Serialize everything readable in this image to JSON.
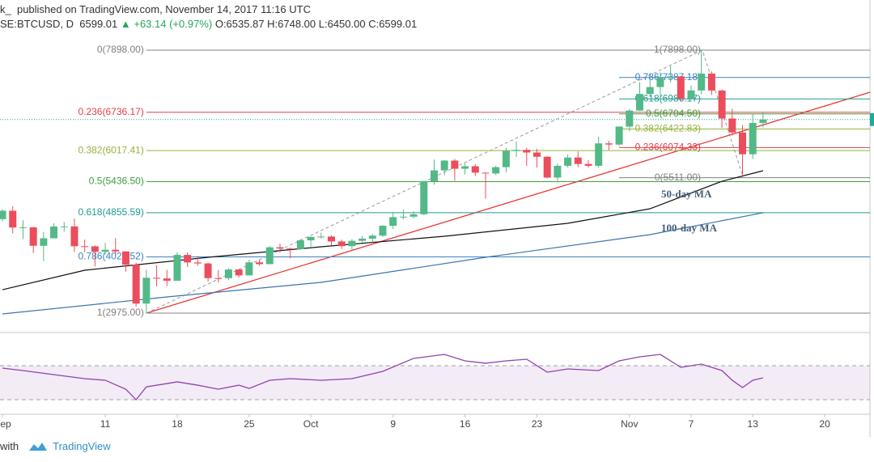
{
  "header": {
    "publisher": "k_",
    "published": "published on TradingView.com, November 14, 2017 11:16 UTC",
    "symbol": "SE:BTCUSD, D",
    "price": "6599.01",
    "change": "▲ +63.14 (+0.97%)",
    "ohlc": "O:6535.87 H:6748.00 L:6450.00 C:6599.01"
  },
  "footer": {
    "with": "with",
    "brand": "TradingView"
  },
  "chart_data": {
    "type": "candlestick",
    "up_color": "#53b987",
    "down_color": "#eb4d5c",
    "x": [
      0,
      1,
      2,
      3,
      4,
      5,
      6,
      7,
      8,
      9,
      10,
      11,
      12,
      13,
      14,
      15,
      16,
      17,
      18,
      19,
      20,
      21,
      22,
      23,
      24,
      25,
      26,
      27,
      28,
      29,
      30,
      31,
      32,
      33,
      34,
      35,
      36,
      37,
      38,
      39,
      40,
      41,
      42,
      43,
      44,
      45,
      46,
      47,
      48,
      49,
      50,
      51,
      52,
      53,
      54,
      55,
      56,
      57,
      58,
      59,
      60,
      61,
      62,
      63,
      64,
      65,
      66,
      67,
      68,
      69,
      70,
      71,
      72,
      73,
      74
    ],
    "open": [
      4735,
      4892,
      4578,
      4582,
      4236,
      4376,
      4597,
      4599,
      4228,
      4226,
      4122,
      4161,
      4130,
      3882,
      3154,
      3637,
      3625,
      3582,
      4065,
      3924,
      3905,
      3631,
      3630,
      3792,
      3682,
      3926,
      3892,
      4208,
      4185,
      4174,
      4338,
      4403,
      4409,
      4317,
      4229,
      4328,
      4370,
      4426,
      4611,
      4772,
      4781,
      4826,
      5446,
      5647,
      5831,
      5678,
      5725,
      5605,
      5590,
      5708,
      6011,
      6031,
      5982,
      5903,
      5513,
      5733,
      5888,
      5767,
      5733,
      6153,
      6131,
      6468,
      6767,
      7078,
      7207,
      7379,
      7407,
      6991,
      7144,
      7459,
      7143,
      6618,
      6357,
      5950,
      6535.87
    ],
    "high": [
      4920,
      4980,
      4714,
      4588,
      4489,
      4657,
      4681,
      4745,
      4352,
      4246,
      4294,
      4380,
      4130,
      3920,
      3790,
      3875,
      3786,
      4111,
      4111,
      4045,
      3922,
      3782,
      3816,
      3792,
      3975,
      3985,
      4230,
      4275,
      4200,
      4360,
      4405,
      4480,
      4430,
      4350,
      4360,
      4420,
      4460,
      4620,
      4870,
      4920,
      4880,
      5450,
      5850,
      5840,
      5860,
      5780,
      5760,
      5610,
      5730,
      6070,
      6190,
      6070,
      6050,
      5910,
      5780,
      5950,
      6000,
      5840,
      6280,
      6200,
      6470,
      6800,
      7300,
      7450,
      7480,
      7600,
      7420,
      7240,
      7898,
      7500,
      7160,
      6800,
      6500,
      6710,
      6748
    ],
    "low": [
      4690,
      4470,
      4360,
      4102,
      3950,
      4376,
      4500,
      4120,
      4120,
      3852,
      4070,
      4066,
      3752,
      3100,
      2975,
      3474,
      3480,
      3582,
      3841,
      3862,
      3564,
      3550,
      3590,
      3640,
      3682,
      3860,
      3892,
      4110,
      4000,
      4160,
      4220,
      4370,
      4240,
      4180,
      4160,
      4300,
      4300,
      4400,
      4550,
      4730,
      4750,
      4810,
      5380,
      5560,
      5450,
      5570,
      5540,
      5120,
      5560,
      5610,
      5900,
      5730,
      5700,
      5500,
      5420,
      5700,
      5710,
      5700,
      5700,
      6030,
      6110,
      6380,
      6760,
      7020,
      6960,
      7290,
      6940,
      6980,
      7071,
      7060,
      6440,
      6300,
      5511,
      5860,
      6450
    ],
    "close": [
      4892,
      4578,
      4582,
      4236,
      4376,
      4597,
      4599,
      4228,
      4226,
      4122,
      4161,
      4130,
      3882,
      3154,
      3637,
      3625,
      3582,
      4065,
      3924,
      3905,
      3631,
      3630,
      3792,
      3682,
      3926,
      3892,
      4208,
      4185,
      4174,
      4338,
      4403,
      4409,
      4317,
      4229,
      4328,
      4370,
      4426,
      4611,
      4772,
      4781,
      4826,
      5446,
      5647,
      5831,
      5678,
      5725,
      5605,
      5590,
      5708,
      6011,
      6031,
      5982,
      5903,
      5513,
      5733,
      5888,
      5767,
      5733,
      6153,
      6131,
      6468,
      6767,
      7078,
      7207,
      7379,
      7407,
      6991,
      7144,
      7459,
      7143,
      6618,
      6357,
      5950,
      6536,
      6599.01
    ],
    "xlim": [
      -0.24,
      84.4
    ],
    "xticks": [
      {
        "value": 0,
        "label": "Sep"
      },
      {
        "value": 10,
        "label": "11"
      },
      {
        "value": 17,
        "label": "18"
      },
      {
        "value": 24,
        "label": "25"
      },
      {
        "value": 30,
        "label": "Oct"
      },
      {
        "value": 38,
        "label": "9"
      },
      {
        "value": 45,
        "label": "16"
      },
      {
        "value": 52,
        "label": "23"
      },
      {
        "value": 61,
        "label": "Nov"
      },
      {
        "value": 67,
        "label": "7"
      },
      {
        "value": 73,
        "label": "13"
      },
      {
        "value": 80,
        "label": "20"
      }
    ],
    "ylim": [
      2627,
      8837
    ],
    "ma": [
      {
        "name": "50-day MA",
        "color": "#111111",
        "x": [
          0,
          8,
          20,
          31,
          43,
          55,
          63,
          70,
          74
        ],
        "values": [
          3414,
          3778,
          4020,
          4217,
          4414,
          4657,
          4929,
          5444,
          5641
        ]
      },
      {
        "name": "100-day MA",
        "color": "#3d72b0",
        "x": [
          0,
          16,
          31,
          47,
          63,
          74
        ],
        "values": [
          2960,
          3278,
          3551,
          4020,
          4445,
          4854
        ]
      }
    ],
    "fib_left": [
      {
        "label": "0(7898.00)",
        "value": 7898,
        "color": "#808080"
      },
      {
        "label": "0.236(6736.17)",
        "value": 6736.17,
        "color": "#e0414d"
      },
      {
        "label": "0.382(6017.41)",
        "value": 6017.41,
        "color": "#95b33a"
      },
      {
        "label": "0.5(5436.50)",
        "value": 5436.5,
        "color": "#3f9e3f"
      },
      {
        "label": "0.618(4855.59)",
        "value": 4855.59,
        "color": "#1f9a94"
      },
      {
        "label": "0.786(4028.52)",
        "value": 4028.52,
        "color": "#3b82c4"
      },
      {
        "label": "1(2975.00)",
        "value": 2975,
        "color": "#808080"
      }
    ],
    "fib_right": [
      {
        "label": "1(7898.00)",
        "value": 7898,
        "color": "#808080"
      },
      {
        "label": "0.786(7387.18)",
        "value": 7387.18,
        "color": "#3b82c4"
      },
      {
        "label": "0.618(6986.17)",
        "value": 6986.17,
        "color": "#1f9a94"
      },
      {
        "label": "0.5(6704.50)",
        "value": 6704.5,
        "color": "#3f9e3f"
      },
      {
        "label": "0.382(6422.83)",
        "value": 6422.83,
        "color": "#95b33a"
      },
      {
        "label": "0.236(6074.33)",
        "value": 6074.33,
        "color": "#e0414d"
      },
      {
        "label": "0(5511.00)",
        "value": 5511,
        "color": "#808080"
      }
    ],
    "rsi": {
      "color": "#8e44ad",
      "ylim": [
        12.9,
        105.2
      ],
      "bands": [
        30,
        70
      ],
      "x": [
        0,
        2,
        5,
        8,
        10,
        12,
        13,
        14,
        16,
        17,
        19,
        21,
        23,
        24,
        26,
        28,
        31,
        34,
        37,
        40,
        43,
        45,
        47,
        49,
        51,
        53,
        55,
        58,
        60,
        62,
        64,
        66,
        68,
        70,
        71,
        72,
        73,
        74
      ],
      "values": [
        67.1,
        64.3,
        59.5,
        54.8,
        52.9,
        42.4,
        30,
        45.2,
        49,
        51,
        47.1,
        42.4,
        47.1,
        43.3,
        52.9,
        54.8,
        52.9,
        54.8,
        63.3,
        78.6,
        83.3,
        75.7,
        72.9,
        75.7,
        77.6,
        62.4,
        66.2,
        64.3,
        75.7,
        80.5,
        83.3,
        68.1,
        71.9,
        64.3,
        52.9,
        44.3,
        52.9,
        55.7
      ]
    }
  }
}
